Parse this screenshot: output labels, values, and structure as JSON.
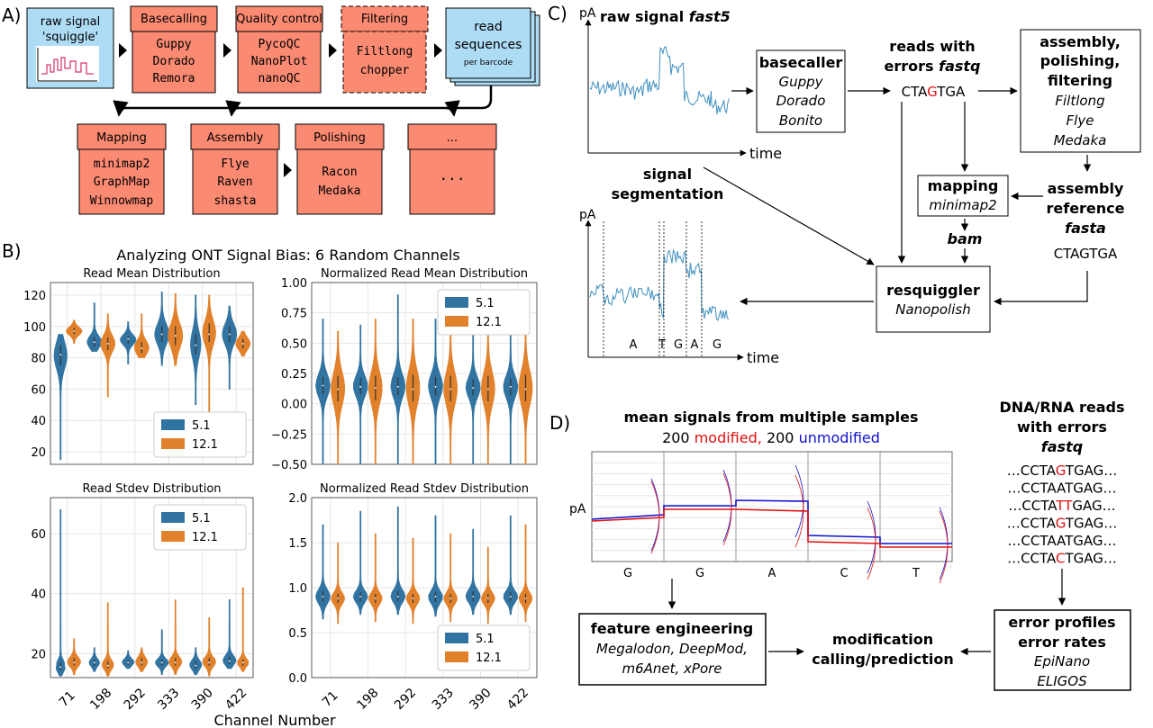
{
  "panel_a": {
    "label": "A)",
    "raw_signal": {
      "line1": "raw signal",
      "line2": "'squiggle'"
    },
    "basecalling": {
      "title": "Basecalling",
      "tools": [
        "Guppy",
        "Dorado",
        "Remora"
      ]
    },
    "quality_control": {
      "title": "Quality control",
      "tools": [
        "PycoQC",
        "NanoPlot",
        "nanoQC"
      ]
    },
    "filtering": {
      "title": "Filtering",
      "tools": [
        "Filtlong",
        "chopper"
      ]
    },
    "read_sequences": {
      "line1": "read",
      "line2": "sequences",
      "line3": "per barcode"
    },
    "mapping": {
      "title": "Mapping",
      "tools": [
        "minimap2",
        "GraphMap",
        "Winnowmap"
      ]
    },
    "assembly": {
      "title": "Assembly",
      "tools": [
        "Flye",
        "Raven",
        "shasta"
      ]
    },
    "polishing": {
      "title": "Polishing",
      "tools": [
        "Racon",
        "Medaka"
      ]
    },
    "more": {
      "title": "...",
      "body": "..."
    }
  },
  "panel_b": {
    "label": "B)",
    "suptitle": "Analyzing ONT Signal Bias: 6 Random Channels",
    "xlabel": "Channel Number",
    "legend": [
      "5.1",
      "12.1"
    ],
    "colors": {
      "v51": "#3274a1",
      "v121": "#e1812c"
    }
  },
  "chart_data": [
    {
      "type": "violin",
      "title": "Read Mean Distribution",
      "categories": [
        "71",
        "198",
        "292",
        "333",
        "390",
        "422"
      ],
      "ylim": [
        12,
        128
      ],
      "yticks": [
        20,
        40,
        60,
        80,
        100,
        120
      ],
      "yticklabels": [
        "20",
        "40",
        "60",
        "80",
        "100",
        "120"
      ],
      "legend_position": "lower-right",
      "grid": true,
      "series": [
        {
          "name": "5.1",
          "median": [
            82,
            90,
            92,
            95,
            88,
            95
          ],
          "q1": [
            75,
            87,
            89,
            90,
            82,
            90
          ],
          "q3": [
            88,
            93,
            94,
            100,
            95,
            100
          ],
          "min": [
            15,
            84,
            76,
            75,
            50,
            60
          ],
          "max": [
            95,
            115,
            103,
            122,
            120,
            113
          ],
          "w": [
            0.45,
            0.5,
            0.55,
            0.5,
            0.35,
            0.5
          ]
        },
        {
          "name": "12.1",
          "median": [
            97,
            89,
            86,
            94,
            95,
            89
          ],
          "q1": [
            95,
            85,
            83,
            88,
            90,
            86
          ],
          "q3": [
            99,
            93,
            90,
            100,
            102,
            92
          ],
          "min": [
            89,
            55,
            80,
            75,
            40,
            81
          ],
          "max": [
            104,
            108,
            108,
            121,
            120,
            97
          ],
          "w": [
            0.55,
            0.5,
            0.5,
            0.5,
            0.45,
            0.5
          ]
        }
      ]
    },
    {
      "type": "violin",
      "title": "Normalized Read Mean Distribution",
      "categories": [
        "71",
        "198",
        "292",
        "333",
        "390",
        "422"
      ],
      "ylim": [
        -0.5,
        1.0
      ],
      "yticks": [
        -0.5,
        -0.25,
        0,
        0.25,
        0.5,
        0.75,
        1.0
      ],
      "yticklabels": [
        "−0.50",
        "−0.25",
        "0.00",
        "0.25",
        "0.50",
        "0.75",
        "1.00"
      ],
      "legend_position": "top-right",
      "grid": true,
      "series": [
        {
          "name": "5.1",
          "median": [
            0.15,
            0.14,
            0.14,
            0.14,
            0.13,
            0.14
          ],
          "q1": [
            0.08,
            0.08,
            0.07,
            0.07,
            0.07,
            0.07
          ],
          "q3": [
            0.22,
            0.21,
            0.22,
            0.22,
            0.2,
            0.21
          ],
          "min": [
            -0.5,
            -0.5,
            -0.5,
            -0.5,
            -0.5,
            -0.5
          ],
          "max": [
            0.7,
            0.65,
            0.9,
            0.7,
            0.65,
            0.7
          ],
          "w": [
            0.45,
            0.45,
            0.45,
            0.45,
            0.45,
            0.45
          ]
        },
        {
          "name": "12.1",
          "median": [
            0.12,
            0.13,
            0.12,
            0.12,
            0.12,
            0.12
          ],
          "q1": [
            0.02,
            0.03,
            0.02,
            0.02,
            0.02,
            0.02
          ],
          "q3": [
            0.23,
            0.23,
            0.24,
            0.23,
            0.23,
            0.24
          ],
          "min": [
            -0.5,
            -0.5,
            -0.5,
            -0.5,
            -0.5,
            -0.5
          ],
          "max": [
            0.6,
            0.7,
            0.7,
            0.62,
            0.58,
            0.62
          ],
          "w": [
            0.42,
            0.42,
            0.42,
            0.42,
            0.42,
            0.42
          ]
        }
      ]
    },
    {
      "type": "violin",
      "title": "Read Stdev Distribution",
      "categories": [
        "71",
        "198",
        "292",
        "333",
        "390",
        "422"
      ],
      "ylim": [
        12,
        72
      ],
      "yticks": [
        20,
        40,
        60
      ],
      "yticklabels": [
        "20",
        "40",
        "60"
      ],
      "legend_position": "top-right",
      "grid": true,
      "series": [
        {
          "name": "5.1",
          "median": [
            15.5,
            17,
            17,
            17,
            16,
            17.5
          ],
          "q1": [
            14.5,
            16,
            16.3,
            16,
            15,
            16.5
          ],
          "q3": [
            17,
            18,
            18,
            18,
            17.5,
            19
          ],
          "min": [
            12.5,
            14,
            15,
            13,
            13,
            15
          ],
          "max": [
            68,
            22,
            21,
            28,
            22,
            38
          ],
          "w": [
            0.35,
            0.35,
            0.4,
            0.45,
            0.4,
            0.45
          ]
        },
        {
          "name": "12.1",
          "median": [
            17,
            16,
            17,
            17,
            17,
            17
          ],
          "q1": [
            16,
            15,
            16,
            16,
            16,
            16
          ],
          "q3": [
            18.5,
            17.5,
            18.5,
            18.5,
            18.5,
            18
          ],
          "min": [
            13,
            12.5,
            14,
            13,
            12.5,
            14
          ],
          "max": [
            25,
            37,
            22,
            38,
            32,
            42
          ],
          "w": [
            0.45,
            0.4,
            0.4,
            0.45,
            0.45,
            0.4
          ]
        }
      ]
    },
    {
      "type": "violin",
      "title": "Normalized Read Stdev Distribution",
      "categories": [
        "71",
        "198",
        "292",
        "333",
        "390",
        "422"
      ],
      "ylim": [
        0,
        2.0
      ],
      "yticks": [
        0,
        0.5,
        1.0,
        1.5,
        2.0
      ],
      "yticklabels": [
        "0.0",
        "0.5",
        "1.0",
        "1.5",
        "2.0"
      ],
      "legend_position": "bottom-right",
      "grid": true,
      "series": [
        {
          "name": "5.1",
          "median": [
            0.9,
            0.9,
            0.9,
            0.9,
            0.9,
            0.9
          ],
          "q1": [
            0.84,
            0.85,
            0.85,
            0.84,
            0.85,
            0.85
          ],
          "q3": [
            0.96,
            0.95,
            0.96,
            0.95,
            0.96,
            0.95
          ],
          "min": [
            0.65,
            0.7,
            0.7,
            0.68,
            0.7,
            0.7
          ],
          "max": [
            1.7,
            1.85,
            1.9,
            1.8,
            1.65,
            1.8
          ],
          "w": [
            0.45,
            0.45,
            0.45,
            0.45,
            0.45,
            0.45
          ]
        },
        {
          "name": "12.1",
          "median": [
            0.88,
            0.88,
            0.88,
            0.88,
            0.88,
            0.88
          ],
          "q1": [
            0.83,
            0.83,
            0.83,
            0.83,
            0.83,
            0.83
          ],
          "q3": [
            0.93,
            0.93,
            0.93,
            0.93,
            0.93,
            0.93
          ],
          "min": [
            0.6,
            0.62,
            0.6,
            0.62,
            0.6,
            0.62
          ],
          "max": [
            1.5,
            1.6,
            1.55,
            1.6,
            1.45,
            1.7
          ],
          "w": [
            0.42,
            0.42,
            0.42,
            0.42,
            0.42,
            0.42
          ]
        }
      ]
    }
  ],
  "panel_c": {
    "label": "C)",
    "pa": "pA",
    "raw_title": "raw signal",
    "raw_title_file": "fast5",
    "time": "time",
    "basecaller": {
      "title": "basecaller",
      "tools": [
        "Guppy",
        "Dorado",
        "Bonito"
      ]
    },
    "reads_errors": {
      "line1": "reads with",
      "line2": "errors",
      "line2_file": "fastq"
    },
    "read_seq": {
      "pre": "CTA",
      "err": "G",
      "post": "TGA"
    },
    "assembly": {
      "lines": [
        "assembly,",
        "polishing,",
        "filtering"
      ],
      "tools": [
        "Filtlong",
        "Flye",
        "Medaka"
      ]
    },
    "segmentation": [
      "signal",
      "segmentation"
    ],
    "mapping": {
      "title": "mapping",
      "tool": "minimap2"
    },
    "bam": "bam",
    "assembly_ref": {
      "line1": "assembly",
      "line2": "reference",
      "line3": "fasta"
    },
    "ref_seq": "CTAGTGA",
    "resquiggler": {
      "title": "resquiggler",
      "tool": "Nanopolish"
    },
    "bases": [
      "A",
      "T",
      "G",
      "A",
      "G"
    ]
  },
  "panel_d": {
    "label": "D)",
    "title": "mean signals from multiple samples",
    "subtitle": {
      "n1": "200",
      "modified": "modified,",
      "n2": "200",
      "unmodified": "unmodified"
    },
    "pa": "pA",
    "bases": [
      "G",
      "G",
      "A",
      "C",
      "T"
    ],
    "dna_title": [
      "DNA/RNA reads",
      "with errors",
      "fastq"
    ],
    "reads": [
      {
        "pre": "…CCTA",
        "err": "G",
        "post": "TGAG…"
      },
      {
        "pre": "…CCTAATGAG…",
        "err": "",
        "post": ""
      },
      {
        "pre": "…CCTA",
        "err": "TT",
        "post": "GAG…"
      },
      {
        "pre": "…CCTA",
        "err": "G",
        "post": "TGAG…"
      },
      {
        "pre": "…CCTAATGAG…",
        "err": "",
        "post": ""
      },
      {
        "pre": "…CCTA",
        "err": "C",
        "post": "TGAG…"
      }
    ],
    "feature_eng": {
      "title": "feature engineering",
      "tools": [
        "Megalodon, DeepMod,",
        "m6Anet, xPore"
      ]
    },
    "modification": [
      "modification",
      "calling/prediction"
    ],
    "error_profiles": {
      "lines": [
        "error profiles",
        "error rates"
      ],
      "tools": [
        "EpiNano",
        "ELIGOS"
      ]
    },
    "colors": {
      "modified": "#e01010",
      "unmodified": "#1010d0",
      "error": "#e01010"
    }
  }
}
